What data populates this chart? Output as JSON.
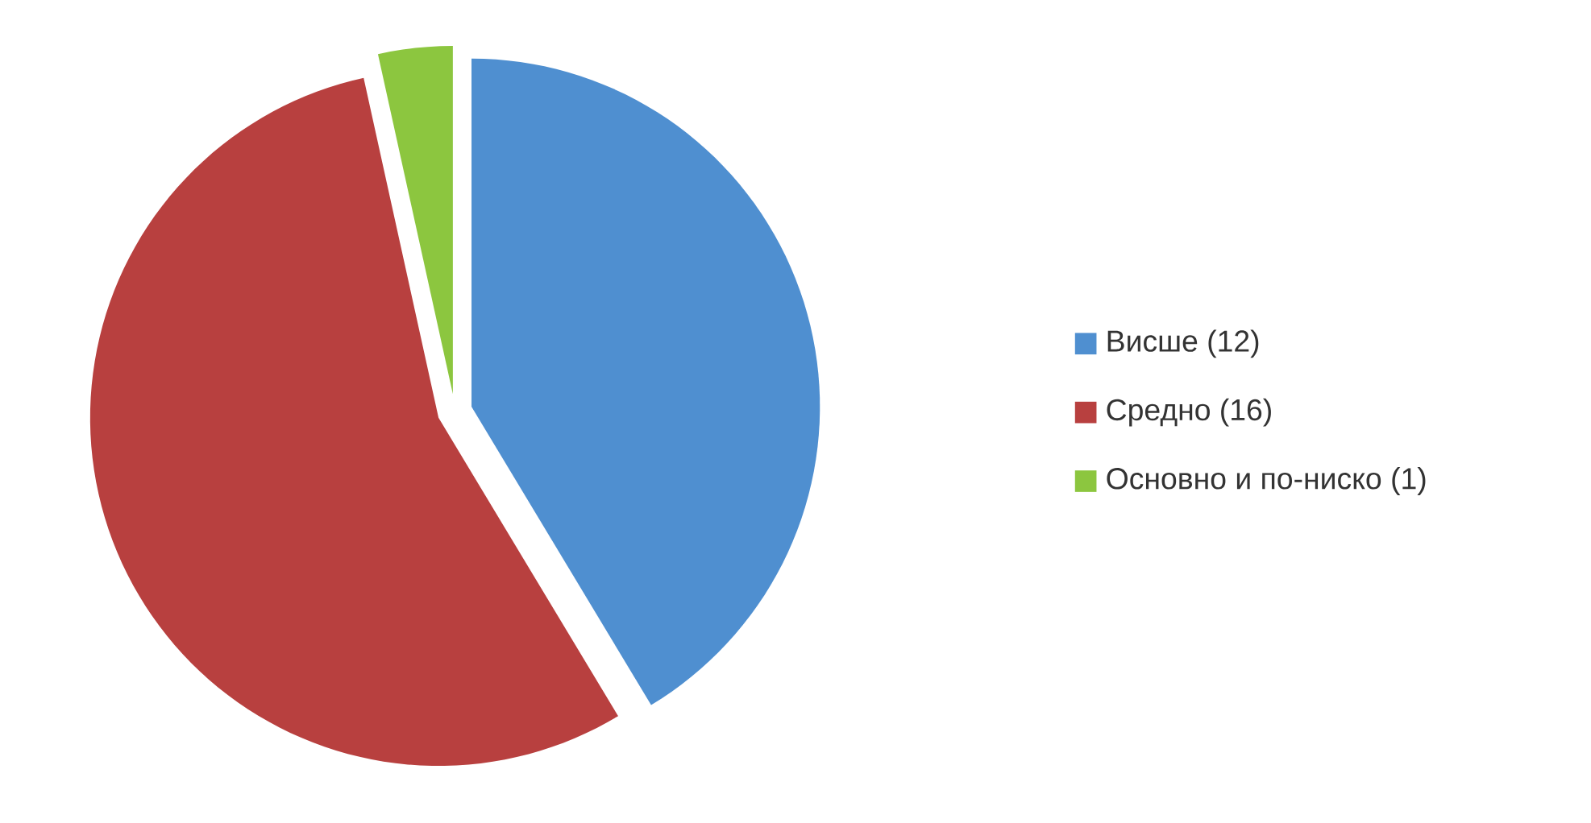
{
  "chart_data": {
    "type": "pie",
    "categories": [
      "Висше (12)",
      "Средно (16)",
      "Основно и по-ниско (1)"
    ],
    "values": [
      12,
      16,
      1
    ],
    "colors": [
      "#4f8fd0",
      "#b8403f",
      "#8cc63f"
    ],
    "legend": "right"
  }
}
